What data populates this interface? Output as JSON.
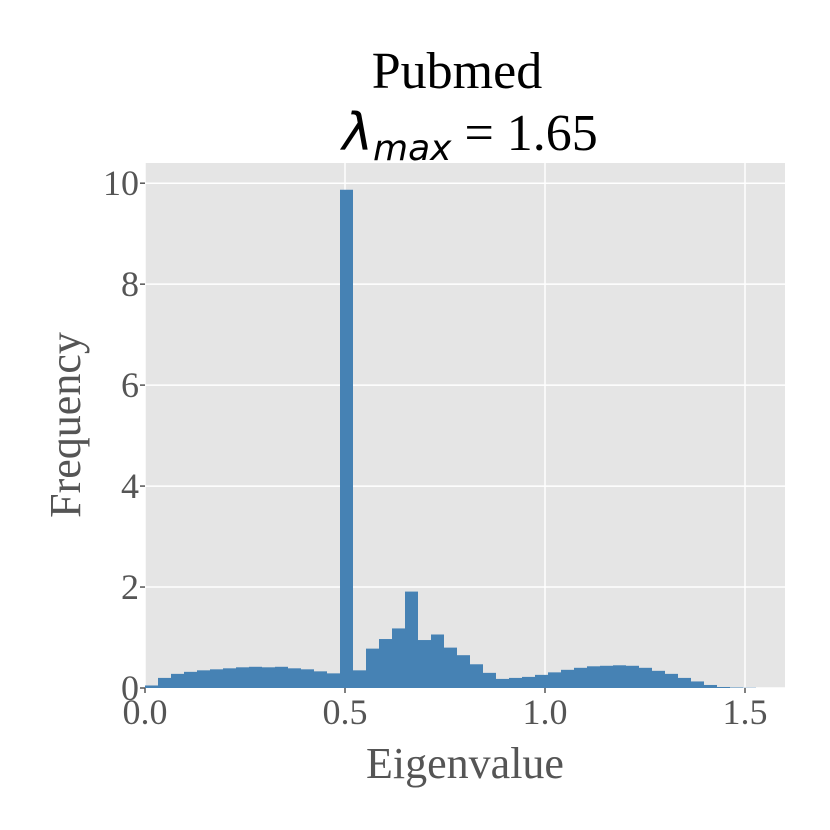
{
  "chart_data": {
    "type": "histogram",
    "title": "Pubmed",
    "subtitle": [
      "λ",
      "max",
      " = 1.65"
    ],
    "x_label": "Eigenvalue",
    "y_label": "Frequency",
    "bins": [
      0,
      0.0325,
      0.065,
      0.0975,
      0.13,
      0.1625,
      0.195,
      0.2275,
      0.26,
      0.2925,
      0.325,
      0.3575,
      0.39,
      0.4225,
      0.455,
      0.4875,
      0.52,
      0.5525,
      0.585,
      0.6175,
      0.65,
      0.6825,
      0.715,
      0.7475,
      0.78,
      0.8125,
      0.845,
      0.8775,
      0.91,
      0.9425,
      0.975,
      1.0075,
      1.04,
      1.0725,
      1.105,
      1.1375,
      1.17,
      1.2025,
      1.235,
      1.2675,
      1.3,
      1.3325,
      1.365,
      1.3975,
      1.43,
      1.4625,
      1.495,
      1.5275
    ],
    "values": [
      0.05,
      0.2,
      0.28,
      0.32,
      0.35,
      0.37,
      0.39,
      0.41,
      0.42,
      0.41,
      0.42,
      0.39,
      0.37,
      0.33,
      0.29,
      9.87,
      0.35,
      0.78,
      0.97,
      1.18,
      1.91,
      0.95,
      1.06,
      0.8,
      0.65,
      0.47,
      0.3,
      0.18,
      0.2,
      0.22,
      0.26,
      0.31,
      0.36,
      0.4,
      0.43,
      0.44,
      0.45,
      0.44,
      0.4,
      0.34,
      0.28,
      0.2,
      0.13,
      0.06,
      0.02,
      0.01,
      0.005
    ],
    "color": "#4682b4",
    "xlim": [
      0,
      1.6
    ],
    "ylim": [
      0,
      10.4
    ],
    "xticks": [
      {
        "value": 0,
        "label": "0.0"
      },
      0.5,
      {
        "value": 1,
        "label": "1.0"
      },
      1.5
    ],
    "yticks": [
      0,
      2,
      4,
      6,
      8,
      10
    ],
    "grid": true
  }
}
